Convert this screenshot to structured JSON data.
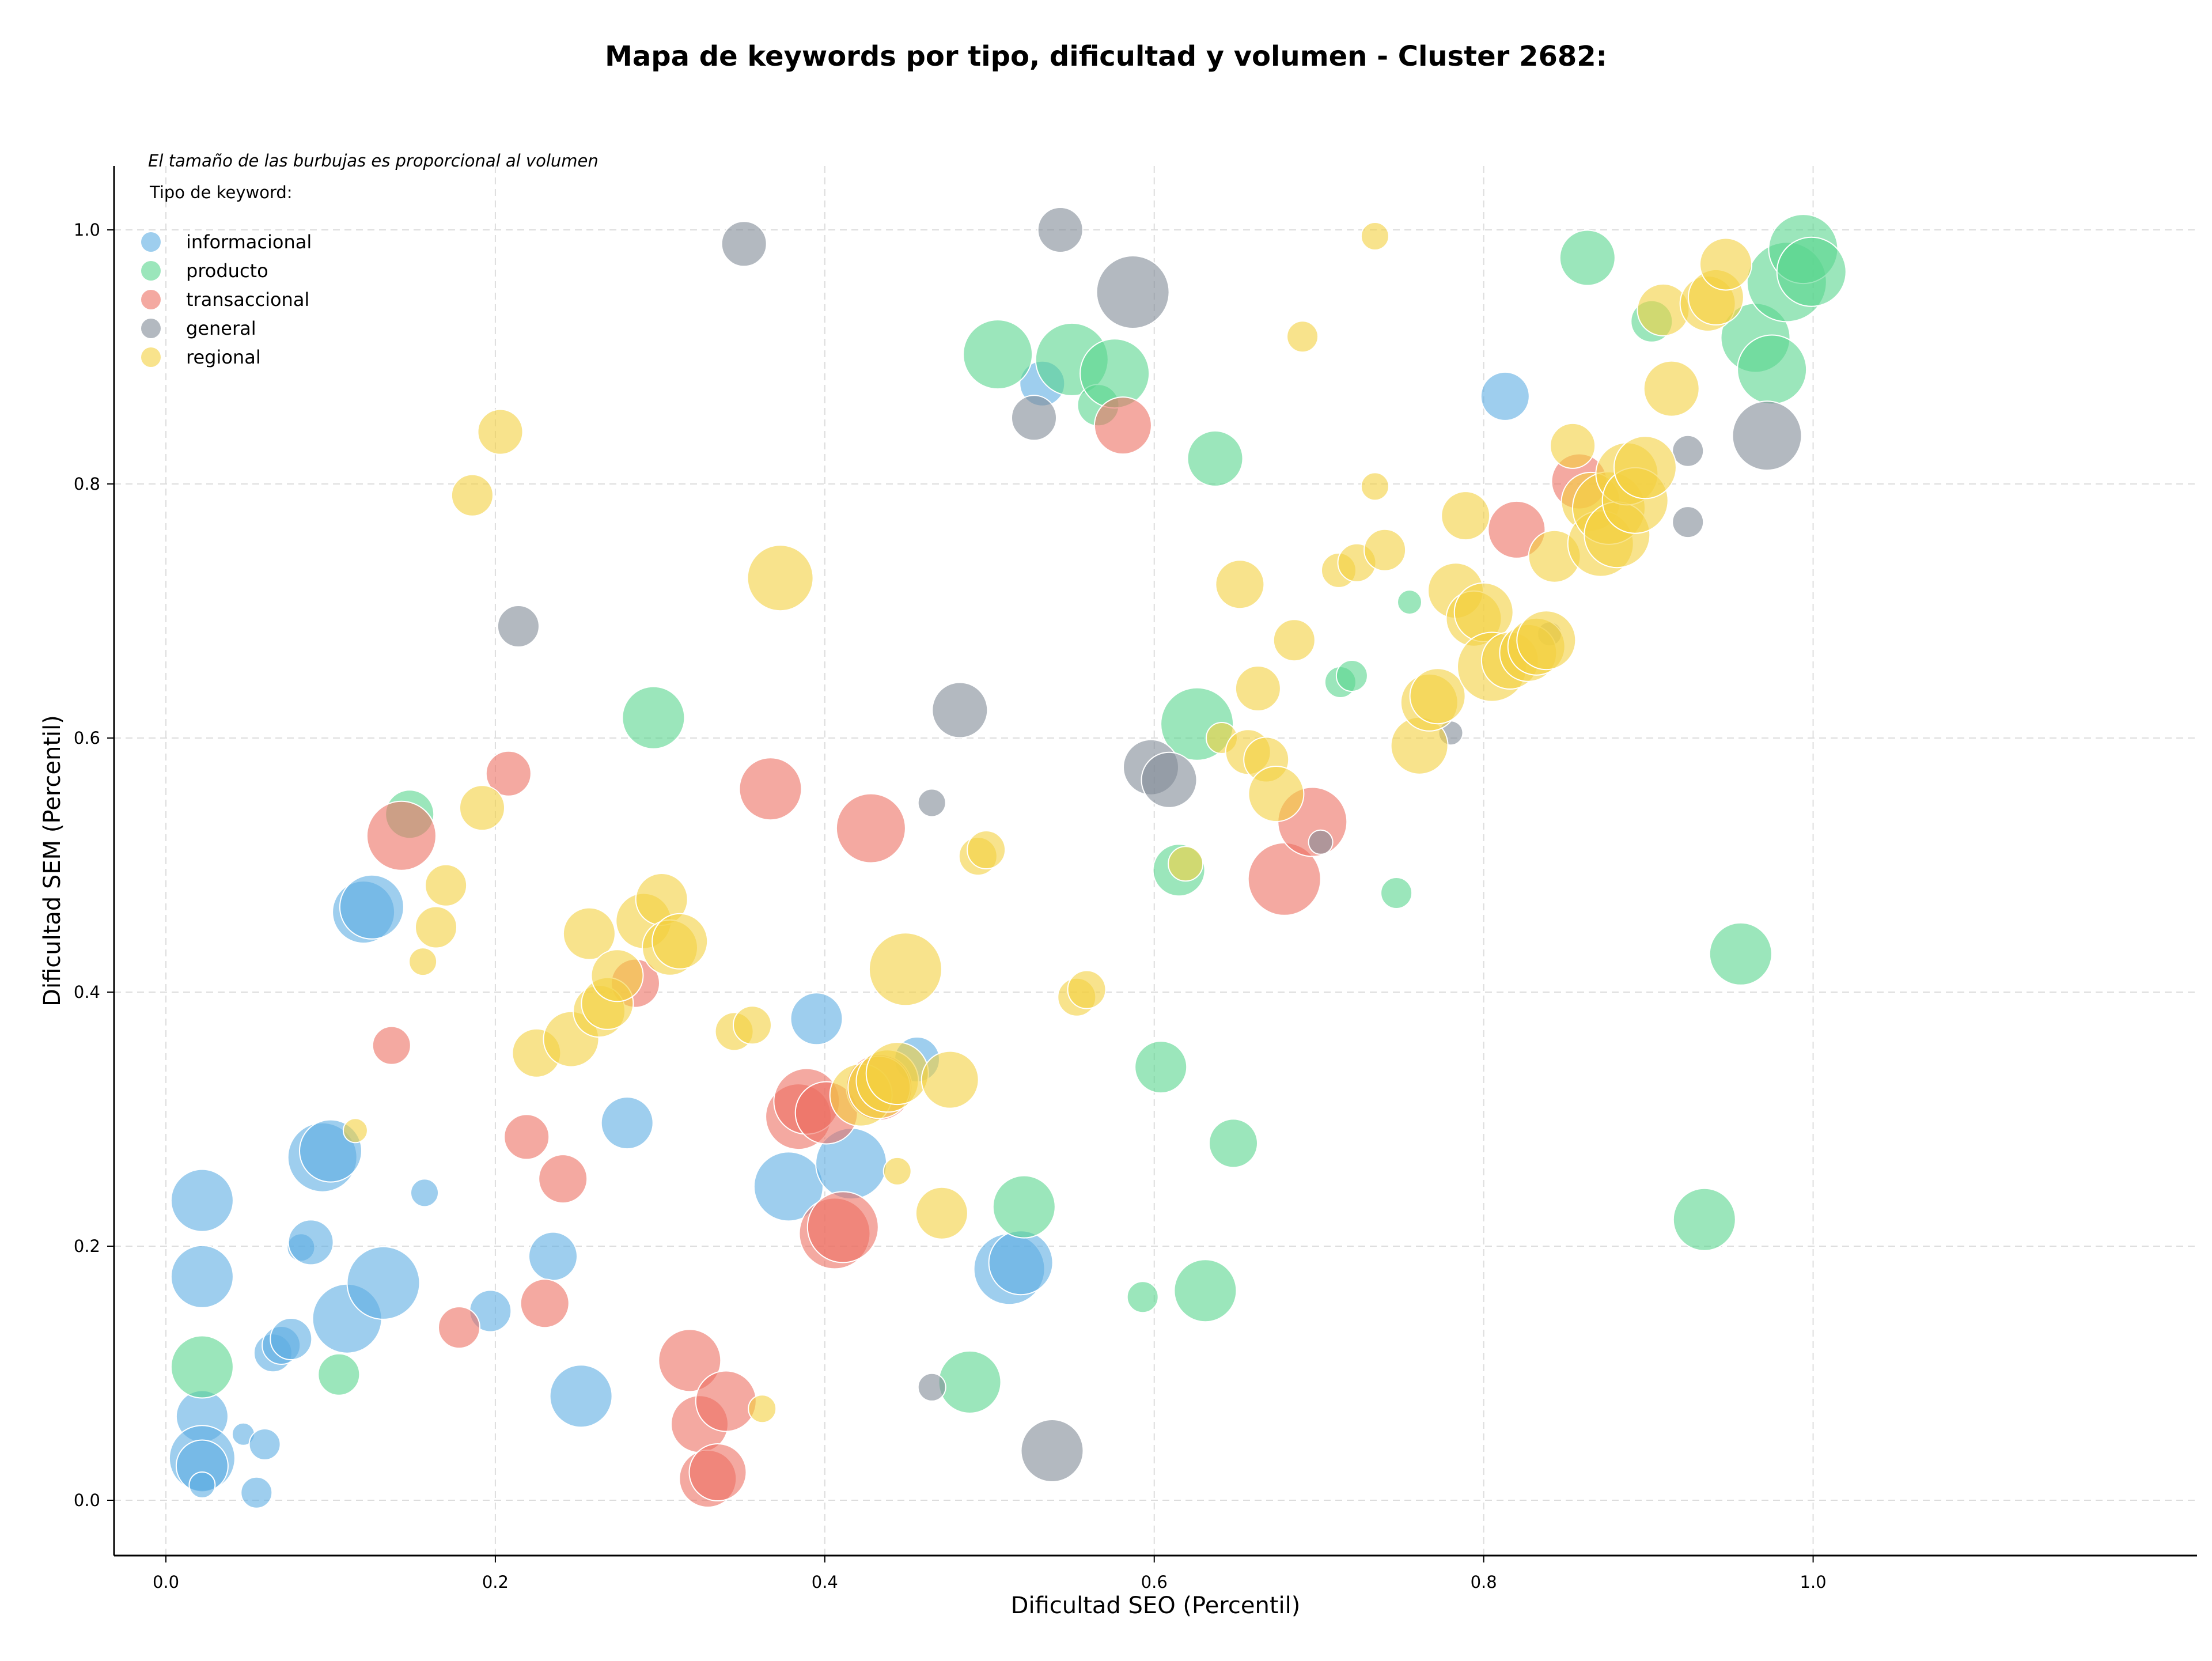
{
  "chart_data": {
    "type": "scatter",
    "title": "Mapa de keywords por tipo, dificultad y volumen - Cluster 2682:",
    "xlabel": "Dificultad SEO (Percentil)",
    "ylabel": "Dificultad SEM (Percentil)",
    "xlim": [
      -0.1,
      1.18
    ],
    "ylim": [
      -0.045,
      1.05
    ],
    "xticks": [
      0.0,
      0.2,
      0.4,
      0.6,
      0.8,
      1.0
    ],
    "yticks": [
      0.0,
      0.2,
      0.4,
      0.6,
      0.8,
      1.0
    ],
    "tick_labels": [
      "0.0",
      "0.2",
      "0.4",
      "0.6",
      "0.8",
      "1.0"
    ],
    "grid": true,
    "note": "El tamaño de las burbujas es proporcional al volumen",
    "legend_title": "Tipo de keyword:",
    "legend_position": "top-left",
    "size_unit": "relative volume",
    "series": [
      {
        "name": "informacional",
        "color": "#5dade2",
        "points": [
          [
            0.022,
            0.236,
            3.6
          ],
          [
            0.022,
            0.176,
            3.6
          ],
          [
            0.022,
            0.066,
            3
          ],
          [
            0.022,
            0.033,
            3.8
          ],
          [
            0.022,
            0.027,
            3
          ],
          [
            0.022,
            0.012,
            1.5
          ],
          [
            0.047,
            0.052,
            1.3
          ],
          [
            0.055,
            0.006,
            1.8
          ],
          [
            0.06,
            0.044,
            1.8
          ],
          [
            0.065,
            0.116,
            2.2
          ],
          [
            0.07,
            0.122,
            2.2
          ],
          [
            0.076,
            0.127,
            2.4
          ],
          [
            0.082,
            0.199,
            1.6
          ],
          [
            0.088,
            0.203,
            2.6
          ],
          [
            0.095,
            0.27,
            4
          ],
          [
            0.1,
            0.275,
            3.6
          ],
          [
            0.11,
            0.143,
            4
          ],
          [
            0.12,
            0.463,
            3.6
          ],
          [
            0.125,
            0.467,
            3.7
          ],
          [
            0.132,
            0.171,
            4.2
          ],
          [
            0.157,
            0.242,
            1.6
          ],
          [
            0.197,
            0.149,
            2.4
          ],
          [
            0.235,
            0.192,
            2.8
          ],
          [
            0.252,
            0.082,
            3.6
          ],
          [
            0.28,
            0.297,
            3
          ],
          [
            0.378,
            0.247,
            4
          ],
          [
            0.395,
            0.379,
            3
          ],
          [
            0.416,
            0.265,
            4.1
          ],
          [
            0.456,
            0.347,
            2.6
          ],
          [
            0.512,
            0.182,
            4.1
          ],
          [
            0.519,
            0.187,
            3.7
          ],
          [
            0.532,
            0.879,
            2.6
          ],
          [
            0.813,
            0.869,
            2.8
          ]
        ]
      },
      {
        "name": "producto",
        "color": "#58d68d",
        "points": [
          [
            0.022,
            0.105,
            3.6
          ],
          [
            0.105,
            0.099,
            2.4
          ],
          [
            0.148,
            0.54,
            2.8
          ],
          [
            0.296,
            0.616,
            3.6
          ],
          [
            0.488,
            0.093,
            3.6
          ],
          [
            0.505,
            0.902,
            4
          ],
          [
            0.521,
            0.231,
            3.6
          ],
          [
            0.55,
            0.898,
            4.2
          ],
          [
            0.566,
            0.862,
            2.4
          ],
          [
            0.576,
            0.887,
            4
          ],
          [
            0.593,
            0.16,
            1.8
          ],
          [
            0.604,
            0.341,
            3
          ],
          [
            0.615,
            0.496,
            3
          ],
          [
            0.626,
            0.611,
            4.2
          ],
          [
            0.631,
            0.165,
            3.6
          ],
          [
            0.637,
            0.82,
            3.2
          ],
          [
            0.648,
            0.281,
            2.8
          ],
          [
            0.713,
            0.644,
            1.8
          ],
          [
            0.72,
            0.649,
            1.8
          ],
          [
            0.747,
            0.478,
            1.8
          ],
          [
            0.755,
            0.707,
            1.4
          ],
          [
            0.863,
            0.978,
            3.2
          ],
          [
            0.902,
            0.928,
            2.4
          ],
          [
            0.934,
            0.221,
            3.6
          ],
          [
            0.956,
            0.43,
            3.6
          ],
          [
            0.965,
            0.915,
            4
          ],
          [
            0.975,
            0.89,
            4
          ],
          [
            0.984,
            0.959,
            4.6
          ],
          [
            0.994,
            0.985,
            4
          ],
          [
            0.999,
            0.967,
            4
          ]
        ]
      },
      {
        "name": "transaccional",
        "color": "#ec7063",
        "points": [
          [
            0.137,
            0.358,
            2.2
          ],
          [
            0.143,
            0.523,
            4
          ],
          [
            0.178,
            0.136,
            2.4
          ],
          [
            0.208,
            0.572,
            2.6
          ],
          [
            0.219,
            0.286,
            2.6
          ],
          [
            0.23,
            0.155,
            2.8
          ],
          [
            0.241,
            0.253,
            2.8
          ],
          [
            0.285,
            0.407,
            2.8
          ],
          [
            0.318,
            0.11,
            3.6
          ],
          [
            0.324,
            0.06,
            3.3
          ],
          [
            0.329,
            0.017,
            3.3
          ],
          [
            0.335,
            0.022,
            3.3
          ],
          [
            0.34,
            0.078,
            3.5
          ],
          [
            0.367,
            0.56,
            3.6
          ],
          [
            0.384,
            0.302,
            3.8
          ],
          [
            0.389,
            0.314,
            3.8
          ],
          [
            0.401,
            0.305,
            3.6
          ],
          [
            0.406,
            0.21,
            4.1
          ],
          [
            0.411,
            0.215,
            4.1
          ],
          [
            0.428,
            0.529,
            4
          ],
          [
            0.433,
            0.325,
            3.8
          ],
          [
            0.581,
            0.846,
            3.3
          ],
          [
            0.679,
            0.489,
            4.2
          ],
          [
            0.696,
            0.534,
            4
          ],
          [
            0.82,
            0.764,
            3.3
          ],
          [
            0.858,
            0.802,
            3.2
          ]
        ]
      },
      {
        "name": "general",
        "color": "#808b96",
        "points": [
          [
            0.214,
            0.688,
            2.4
          ],
          [
            0.351,
            0.989,
            2.6
          ],
          [
            0.465,
            0.549,
            1.6
          ],
          [
            0.465,
            0.089,
            1.6
          ],
          [
            0.482,
            0.622,
            3.2
          ],
          [
            0.527,
            0.852,
            2.6
          ],
          [
            0.538,
            0.039,
            3.6
          ],
          [
            0.543,
            1.0,
            2.6
          ],
          [
            0.587,
            0.951,
            4.2
          ],
          [
            0.598,
            0.577,
            3.2
          ],
          [
            0.609,
            0.567,
            3.2
          ],
          [
            0.701,
            0.518,
            1.4
          ],
          [
            0.78,
            0.604,
            1.4
          ],
          [
            0.84,
            0.682,
            1.4
          ],
          [
            0.924,
            0.826,
            1.8
          ],
          [
            0.924,
            0.77,
            1.8
          ],
          [
            0.972,
            0.838,
            4
          ]
        ]
      },
      {
        "name": "regional",
        "color": "#f4d03f",
        "points": [
          [
            0.115,
            0.291,
            1.4
          ],
          [
            0.156,
            0.424,
            1.6
          ],
          [
            0.164,
            0.451,
            2.4
          ],
          [
            0.17,
            0.484,
            2.4
          ],
          [
            0.186,
            0.791,
            2.4
          ],
          [
            0.192,
            0.545,
            2.6
          ],
          [
            0.203,
            0.841,
            2.6
          ],
          [
            0.225,
            0.352,
            2.8
          ],
          [
            0.246,
            0.363,
            3.2
          ],
          [
            0.257,
            0.446,
            3
          ],
          [
            0.263,
            0.385,
            3
          ],
          [
            0.268,
            0.391,
            3
          ],
          [
            0.274,
            0.413,
            3
          ],
          [
            0.29,
            0.456,
            3.2
          ],
          [
            0.301,
            0.473,
            3
          ],
          [
            0.306,
            0.435,
            3.2
          ],
          [
            0.312,
            0.44,
            3.2
          ],
          [
            0.345,
            0.369,
            2.2
          ],
          [
            0.356,
            0.374,
            2.2
          ],
          [
            0.362,
            0.072,
            1.6
          ],
          [
            0.373,
            0.726,
            3.8
          ],
          [
            0.422,
            0.319,
            3.6
          ],
          [
            0.433,
            0.325,
            3.6
          ],
          [
            0.438,
            0.33,
            3.6
          ],
          [
            0.444,
            0.336,
            3.6
          ],
          [
            0.449,
            0.418,
            4.2
          ],
          [
            0.444,
            0.259,
            1.6
          ],
          [
            0.471,
            0.226,
            3
          ],
          [
            0.476,
            0.331,
            3.3
          ],
          [
            0.493,
            0.507,
            2.2
          ],
          [
            0.498,
            0.512,
            2.2
          ],
          [
            0.553,
            0.396,
            2.2
          ],
          [
            0.559,
            0.402,
            2.2
          ],
          [
            0.619,
            0.501,
            2
          ],
          [
            0.641,
            0.6,
            1.8
          ],
          [
            0.652,
            0.721,
            2.8
          ],
          [
            0.657,
            0.589,
            2.6
          ],
          [
            0.663,
            0.639,
            2.6
          ],
          [
            0.668,
            0.583,
            2.6
          ],
          [
            0.674,
            0.556,
            3.2
          ],
          [
            0.685,
            0.677,
            2.4
          ],
          [
            0.69,
            0.916,
            1.8
          ],
          [
            0.712,
            0.732,
            2
          ],
          [
            0.723,
            0.738,
            2.2
          ],
          [
            0.734,
            0.798,
            1.6
          ],
          [
            0.734,
            0.995,
            1.6
          ],
          [
            0.74,
            0.748,
            2.4
          ],
          [
            0.761,
            0.594,
            3.3
          ],
          [
            0.767,
            0.628,
            3.3
          ],
          [
            0.772,
            0.633,
            3.2
          ],
          [
            0.783,
            0.716,
            3.2
          ],
          [
            0.789,
            0.775,
            2.8
          ],
          [
            0.794,
            0.694,
            3.2
          ],
          [
            0.8,
            0.699,
            3.4
          ],
          [
            0.805,
            0.656,
            4
          ],
          [
            0.816,
            0.661,
            3.3
          ],
          [
            0.827,
            0.667,
            3.3
          ],
          [
            0.832,
            0.672,
            3.3
          ],
          [
            0.838,
            0.677,
            3.4
          ],
          [
            0.843,
            0.743,
            3
          ],
          [
            0.854,
            0.83,
            2.6
          ],
          [
            0.865,
            0.786,
            3.4
          ],
          [
            0.871,
            0.753,
            3.8
          ],
          [
            0.876,
            0.781,
            4.2
          ],
          [
            0.881,
            0.76,
            3.8
          ],
          [
            0.887,
            0.808,
            3.6
          ],
          [
            0.892,
            0.787,
            3.8
          ],
          [
            0.898,
            0.813,
            3.6
          ],
          [
            0.909,
            0.937,
            3
          ],
          [
            0.914,
            0.875,
            3.2
          ],
          [
            0.936,
            0.942,
            3.2
          ],
          [
            0.941,
            0.947,
            3.2
          ],
          [
            0.947,
            0.973,
            3
          ]
        ]
      }
    ]
  }
}
